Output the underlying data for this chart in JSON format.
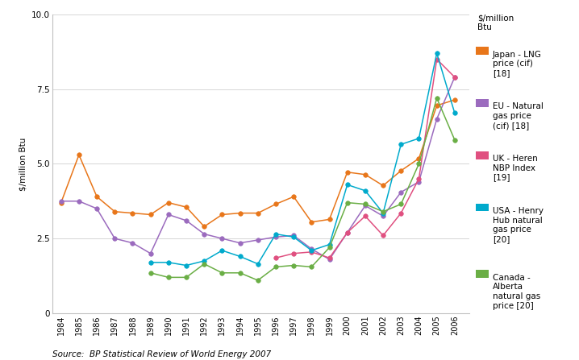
{
  "years": [
    1984,
    1985,
    1986,
    1987,
    1988,
    1989,
    1990,
    1991,
    1992,
    1993,
    1994,
    1995,
    1996,
    1997,
    1998,
    1999,
    2000,
    2001,
    2002,
    2003,
    2004,
    2005,
    2006
  ],
  "japan_lng": [
    3.7,
    5.3,
    3.9,
    3.4,
    3.35,
    3.3,
    3.7,
    3.55,
    2.9,
    3.3,
    3.35,
    3.35,
    3.65,
    3.9,
    3.05,
    3.14,
    4.72,
    4.64,
    4.27,
    4.77,
    5.18,
    6.95,
    7.14
  ],
  "eu_ng": [
    3.75,
    3.75,
    3.5,
    2.5,
    2.35,
    2.0,
    3.3,
    3.1,
    2.65,
    2.5,
    2.35,
    2.45,
    2.55,
    2.6,
    2.15,
    1.8,
    2.7,
    3.6,
    3.25,
    4.05,
    4.4,
    6.5,
    7.9
  ],
  "uk_nbp": [
    null,
    null,
    null,
    null,
    null,
    null,
    null,
    null,
    null,
    null,
    null,
    null,
    1.85,
    2.0,
    2.05,
    1.85,
    2.7,
    3.25,
    2.6,
    3.35,
    4.5,
    8.5,
    7.9
  ],
  "usa_henry": [
    null,
    null,
    null,
    null,
    null,
    1.7,
    1.7,
    1.6,
    1.75,
    2.1,
    1.9,
    1.65,
    2.65,
    2.55,
    2.1,
    2.3,
    4.3,
    4.1,
    3.35,
    5.65,
    5.85,
    8.7,
    6.7
  ],
  "canada_alberta": [
    null,
    null,
    null,
    null,
    null,
    1.35,
    1.2,
    1.2,
    1.65,
    1.35,
    1.35,
    1.1,
    1.55,
    1.6,
    1.55,
    2.2,
    3.7,
    3.65,
    3.4,
    3.65,
    5.0,
    7.2,
    5.8
  ],
  "japan_color": "#E8761A",
  "eu_color": "#9B6BBE",
  "uk_color": "#E05080",
  "usa_color": "#00AACC",
  "canada_color": "#6AAE45",
  "ylabel": "$/million Btu",
  "source": "Source:  BP Statistical Review of World Energy 2007",
  "ylim": [
    0,
    10.0
  ],
  "legend_title": "$/million\nBtu",
  "legend_entries": [
    "Japan - LNG\nprice (cif)\n[18]",
    "EU - Natural\ngas price\n(cif) [18]",
    "UK - Heren\nNBP Index\n[19]",
    "USA - Henry\nHub natural\ngas price\n[20]",
    "Canada -\nAlberta\nnatural gas\nprice [20]"
  ]
}
